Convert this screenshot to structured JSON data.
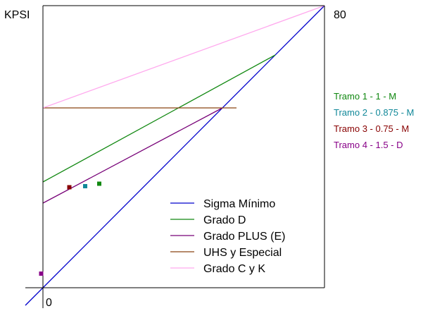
{
  "chart_data": {
    "type": "line",
    "y_axis_unit": "KPSI",
    "axis_max_label": "80",
    "axis_min_label": "0",
    "xlim": [
      0,
      80
    ],
    "ylim": [
      0,
      80
    ],
    "grid": false,
    "legend_position": "bottom-right",
    "series": [
      {
        "name": "Sigma Mínimo",
        "color": "#0000cc",
        "points": [
          [
            -5,
            -5
          ],
          [
            80,
            80
          ]
        ]
      },
      {
        "name": "Grado D",
        "color": "#118811",
        "points": [
          [
            0,
            30
          ],
          [
            66,
            66
          ]
        ]
      },
      {
        "name": "Grado PLUS (E)",
        "color": "#770077",
        "points": [
          [
            0,
            24
          ],
          [
            51,
            51
          ]
        ]
      },
      {
        "name": "UHS y Especial",
        "color": "#8b4513",
        "points": [
          [
            0,
            51
          ],
          [
            55,
            51
          ]
        ]
      },
      {
        "name": "Grado C y K",
        "color": "#ffaaee",
        "points": [
          [
            0,
            51
          ],
          [
            80,
            80
          ]
        ]
      }
    ],
    "tramos": [
      {
        "label": "Tramo 1 - 1 - M",
        "color": "#118811",
        "x": 16,
        "y": 29.5
      },
      {
        "label": "Tramo 2 - 0.875 - M",
        "color": "#118899",
        "x": 12,
        "y": 28.8
      },
      {
        "label": "Tramo 3 - 0.75 - M",
        "color": "#880000",
        "x": 7.5,
        "y": 28.5
      },
      {
        "label": "Tramo 4 - 1.5 - D",
        "color": "#880088",
        "x": -0.5,
        "y": 4
      }
    ]
  }
}
